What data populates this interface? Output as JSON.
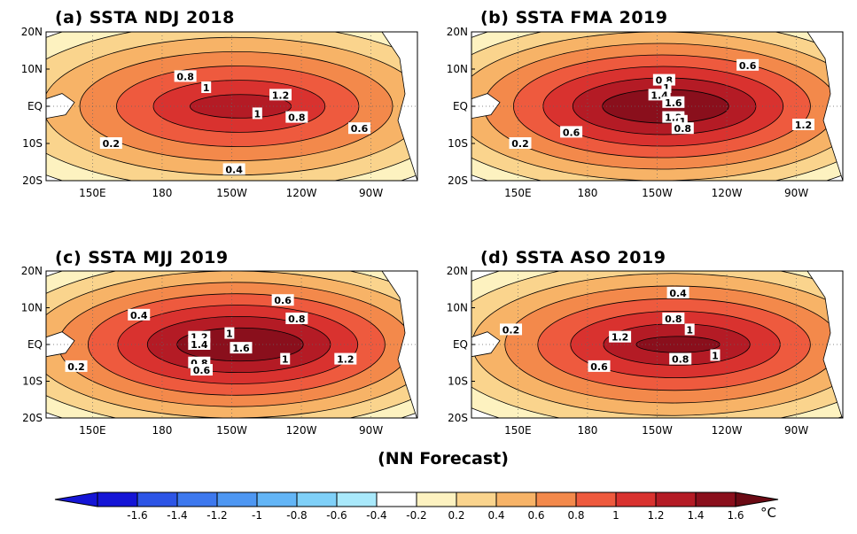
{
  "panels": [
    {
      "title": "(a) SSTA  NDJ 2018",
      "max_anom": 1.45,
      "contour_labels": [
        "0.8",
        "1",
        "1.2",
        "1",
        "0.8",
        "0.6",
        "0.2",
        "0.4"
      ]
    },
    {
      "title": "(b) SSTA  FMA 2019",
      "max_anom": 1.75,
      "contour_labels": [
        "0.6",
        "0.8",
        "1",
        "1.4",
        "1.6",
        "1.2",
        "1",
        "0.8",
        "1.2",
        "0.6",
        "0.2"
      ]
    },
    {
      "title": "(c) SSTA  MJJ 2019",
      "max_anom": 1.75,
      "contour_labels": [
        "0.6",
        "0.8",
        "0.4",
        "1.2",
        "1",
        "1.4",
        "1.6",
        "1",
        "1.2",
        "0.8",
        "0.6",
        "0.2"
      ]
    },
    {
      "title": "(d) SSTA  ASO 2019",
      "max_anom": 1.6,
      "contour_labels": [
        "0.4",
        "0.8",
        "1.2",
        "1",
        "0.8",
        "1",
        "0.6",
        "0.2"
      ]
    }
  ],
  "lat_ticks": [
    "20N",
    "10N",
    "EQ",
    "10S",
    "20S"
  ],
  "lon_ticks": [
    "150E",
    "180",
    "150W",
    "120W",
    "90W"
  ],
  "caption": "(NN Forecast)",
  "colorbar": {
    "unit": "°C",
    "tick_labels": [
      "-1.6",
      "-1.4",
      "-1.2",
      "-1",
      "-0.8",
      "-0.6",
      "-0.4",
      "-0.2",
      "0.2",
      "0.4",
      "0.6",
      "0.8",
      "1",
      "1.2",
      "1.4",
      "1.6"
    ],
    "colors": [
      "#1515d6",
      "#2d55e6",
      "#3d78ee",
      "#4e97f2",
      "#63b5f6",
      "#7fd0f8",
      "#a9e9fb",
      "#ffffff",
      "#fdf2c0",
      "#fad48d",
      "#f7b367",
      "#f3894b",
      "#ee5a3e",
      "#d9322f",
      "#b41b25",
      "#8a0f1c"
    ]
  },
  "chart_data": {
    "type": "heatmap",
    "variable": "SSTA",
    "unit": "°C",
    "panels": [
      {
        "title": "(a) SSTA  NDJ 2018",
        "xlim": [
          "130E",
          "70W"
        ],
        "ylim": [
          "20S",
          "20N"
        ],
        "max_anom": 1.45
      },
      {
        "title": "(b) SSTA  FMA 2019",
        "xlim": [
          "130E",
          "70W"
        ],
        "ylim": [
          "20S",
          "20N"
        ],
        "max_anom": 1.75
      },
      {
        "title": "(c) SSTA  MJJ 2019",
        "xlim": [
          "130E",
          "70W"
        ],
        "ylim": [
          "20S",
          "20N"
        ],
        "max_anom": 1.75
      },
      {
        "title": "(d) SSTA  ASO 2019",
        "xlim": [
          "130E",
          "70W"
        ],
        "ylim": [
          "20S",
          "20N"
        ],
        "max_anom": 1.6
      }
    ],
    "contour_levels": [
      -1.6,
      -1.4,
      -1.2,
      -1,
      -0.8,
      -0.6,
      -0.4,
      -0.2,
      0.2,
      0.4,
      0.6,
      0.8,
      1,
      1.2,
      1.4,
      1.6
    ]
  }
}
